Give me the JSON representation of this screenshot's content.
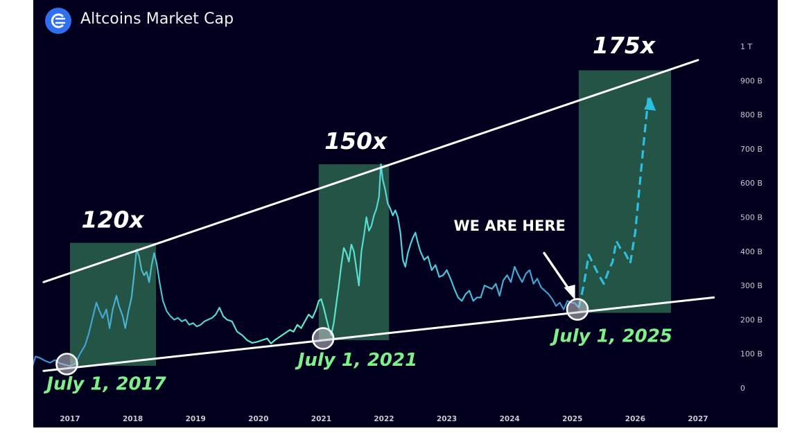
{
  "header": {
    "title": "Altcoins Market Cap",
    "logo_icon": "crypto-bubbles-logo-icon"
  },
  "colors": {
    "background": "#00001e",
    "line_start": "#3a8ed0",
    "line_end": "#62f0c8",
    "trend_line": "#ffffff",
    "highlight_box": "#2e6b52",
    "projection": "#2cc0e0",
    "date_label": "#7ef08a",
    "multiplier_label": "#ffffff",
    "axis_text": "#c8c9d2"
  },
  "chart_data": {
    "type": "line",
    "title": "Altcoins Market Cap",
    "xlabel": "",
    "ylabel": "",
    "ylim": [
      0,
      1000
    ],
    "y_unit": "B",
    "y_ticks": [
      {
        "v": 0,
        "label": "0"
      },
      {
        "v": 100,
        "label": "100 B"
      },
      {
        "v": 200,
        "label": "200 B"
      },
      {
        "v": 300,
        "label": "300 B"
      },
      {
        "v": 400,
        "label": "400 B"
      },
      {
        "v": 500,
        "label": "500 B"
      },
      {
        "v": 600,
        "label": "600 B"
      },
      {
        "v": 700,
        "label": "700 B"
      },
      {
        "v": 800,
        "label": "800 B"
      },
      {
        "v": 900,
        "label": "900 B"
      },
      {
        "v": 1000,
        "label": "1 T"
      }
    ],
    "x_range": [
      2016.4,
      2027.3
    ],
    "x_ticks": [
      {
        "v": 2017,
        "label": "2017"
      },
      {
        "v": 2018,
        "label": "2018"
      },
      {
        "v": 2019,
        "label": "2019"
      },
      {
        "v": 2020,
        "label": "2020"
      },
      {
        "v": 2021,
        "label": "2021"
      },
      {
        "v": 2022,
        "label": "2022"
      },
      {
        "v": 2023,
        "label": "2023"
      },
      {
        "v": 2024,
        "label": "2024"
      },
      {
        "v": 2025,
        "label": "2025"
      },
      {
        "v": 2026,
        "label": "2026"
      },
      {
        "v": 2027,
        "label": "2027"
      }
    ],
    "series": [
      {
        "style": "solid",
        "points": [
          [
            2016.4,
            62
          ],
          [
            2016.45,
            92
          ],
          [
            2016.52,
            88
          ],
          [
            2016.6,
            80
          ],
          [
            2016.68,
            74
          ],
          [
            2016.76,
            82
          ],
          [
            2016.84,
            72
          ],
          [
            2016.92,
            68
          ],
          [
            2017.0,
            64
          ],
          [
            2017.08,
            70
          ],
          [
            2017.16,
            100
          ],
          [
            2017.24,
            125
          ],
          [
            2017.3,
            160
          ],
          [
            2017.36,
            205
          ],
          [
            2017.42,
            250
          ],
          [
            2017.47,
            225
          ],
          [
            2017.52,
            205
          ],
          [
            2017.58,
            230
          ],
          [
            2017.63,
            175
          ],
          [
            2017.68,
            230
          ],
          [
            2017.74,
            270
          ],
          [
            2017.78,
            240
          ],
          [
            2017.84,
            210
          ],
          [
            2017.88,
            175
          ],
          [
            2017.93,
            225
          ],
          [
            2017.98,
            265
          ],
          [
            2018.02,
            330
          ],
          [
            2018.06,
            405
          ],
          [
            2018.1,
            385
          ],
          [
            2018.14,
            345
          ],
          [
            2018.18,
            330
          ],
          [
            2018.22,
            340
          ],
          [
            2018.26,
            310
          ],
          [
            2018.3,
            360
          ],
          [
            2018.34,
            395
          ],
          [
            2018.38,
            365
          ],
          [
            2018.43,
            305
          ],
          [
            2018.48,
            255
          ],
          [
            2018.54,
            225
          ],
          [
            2018.6,
            210
          ],
          [
            2018.66,
            200
          ],
          [
            2018.72,
            205
          ],
          [
            2018.78,
            195
          ],
          [
            2018.84,
            200
          ],
          [
            2018.9,
            185
          ],
          [
            2018.96,
            190
          ],
          [
            2019.02,
            180
          ],
          [
            2019.08,
            185
          ],
          [
            2019.14,
            195
          ],
          [
            2019.2,
            200
          ],
          [
            2019.26,
            205
          ],
          [
            2019.32,
            215
          ],
          [
            2019.38,
            235
          ],
          [
            2019.44,
            210
          ],
          [
            2019.5,
            200
          ],
          [
            2019.58,
            195
          ],
          [
            2019.66,
            165
          ],
          [
            2019.74,
            155
          ],
          [
            2019.82,
            140
          ],
          [
            2019.9,
            132
          ],
          [
            2019.98,
            135
          ],
          [
            2020.06,
            140
          ],
          [
            2020.14,
            145
          ],
          [
            2020.2,
            130
          ],
          [
            2020.26,
            140
          ],
          [
            2020.34,
            150
          ],
          [
            2020.42,
            160
          ],
          [
            2020.5,
            170
          ],
          [
            2020.56,
            165
          ],
          [
            2020.62,
            185
          ],
          [
            2020.68,
            175
          ],
          [
            2020.74,
            195
          ],
          [
            2020.8,
            215
          ],
          [
            2020.86,
            205
          ],
          [
            2020.92,
            230
          ],
          [
            2020.96,
            255
          ],
          [
            2021.0,
            260
          ],
          [
            2021.04,
            235
          ],
          [
            2021.08,
            205
          ],
          [
            2021.12,
            175
          ],
          [
            2021.16,
            155
          ],
          [
            2021.2,
            190
          ],
          [
            2021.24,
            245
          ],
          [
            2021.28,
            300
          ],
          [
            2021.32,
            360
          ],
          [
            2021.36,
            410
          ],
          [
            2021.4,
            395
          ],
          [
            2021.44,
            370
          ],
          [
            2021.48,
            420
          ],
          [
            2021.52,
            400
          ],
          [
            2021.56,
            350
          ],
          [
            2021.6,
            300
          ],
          [
            2021.64,
            400
          ],
          [
            2021.68,
            445
          ],
          [
            2021.72,
            500
          ],
          [
            2021.76,
            460
          ],
          [
            2021.8,
            475
          ],
          [
            2021.84,
            505
          ],
          [
            2021.88,
            525
          ],
          [
            2021.92,
            560
          ],
          [
            2021.95,
            655
          ],
          [
            2021.98,
            610
          ],
          [
            2022.02,
            580
          ],
          [
            2022.06,
            540
          ],
          [
            2022.1,
            525
          ],
          [
            2022.14,
            505
          ],
          [
            2022.18,
            520
          ],
          [
            2022.22,
            500
          ],
          [
            2022.26,
            455
          ],
          [
            2022.3,
            375
          ],
          [
            2022.34,
            355
          ],
          [
            2022.38,
            395
          ],
          [
            2022.42,
            420
          ],
          [
            2022.46,
            440
          ],
          [
            2022.5,
            455
          ],
          [
            2022.54,
            425
          ],
          [
            2022.58,
            400
          ],
          [
            2022.64,
            375
          ],
          [
            2022.7,
            385
          ],
          [
            2022.76,
            345
          ],
          [
            2022.82,
            360
          ],
          [
            2022.88,
            325
          ],
          [
            2022.94,
            330
          ],
          [
            2023.0,
            345
          ],
          [
            2023.06,
            320
          ],
          [
            2023.12,
            290
          ],
          [
            2023.18,
            265
          ],
          [
            2023.24,
            255
          ],
          [
            2023.3,
            275
          ],
          [
            2023.36,
            285
          ],
          [
            2023.42,
            255
          ],
          [
            2023.48,
            265
          ],
          [
            2023.54,
            265
          ],
          [
            2023.6,
            300
          ],
          [
            2023.66,
            295
          ],
          [
            2023.72,
            290
          ],
          [
            2023.78,
            305
          ],
          [
            2023.84,
            270
          ],
          [
            2023.9,
            315
          ],
          [
            2023.96,
            330
          ],
          [
            2024.02,
            310
          ],
          [
            2024.08,
            355
          ],
          [
            2024.14,
            330
          ],
          [
            2024.2,
            310
          ],
          [
            2024.26,
            335
          ],
          [
            2024.32,
            345
          ],
          [
            2024.38,
            305
          ],
          [
            2024.44,
            320
          ],
          [
            2024.5,
            295
          ],
          [
            2024.56,
            285
          ],
          [
            2024.62,
            275
          ],
          [
            2024.68,
            260
          ],
          [
            2024.74,
            240
          ],
          [
            2024.8,
            250
          ],
          [
            2024.86,
            230
          ],
          [
            2024.92,
            255
          ],
          [
            2024.98,
            250
          ],
          [
            2025.04,
            248
          ],
          [
            2025.1,
            235
          ]
        ]
      },
      {
        "style": "dashed",
        "points": [
          [
            2025.1,
            235
          ],
          [
            2025.18,
            300
          ],
          [
            2025.26,
            390
          ],
          [
            2025.34,
            360
          ],
          [
            2025.42,
            330
          ],
          [
            2025.5,
            305
          ],
          [
            2025.58,
            345
          ],
          [
            2025.64,
            370
          ],
          [
            2025.7,
            430
          ],
          [
            2025.76,
            410
          ],
          [
            2025.84,
            395
          ],
          [
            2025.92,
            365
          ],
          [
            2026.0,
            455
          ],
          [
            2026.08,
            610
          ],
          [
            2026.15,
            745
          ],
          [
            2026.21,
            850
          ]
        ]
      }
    ],
    "highlight_ranges": [
      {
        "x0": 2017.0,
        "x1": 2018.37,
        "y0": 65,
        "y1": 425
      },
      {
        "x0": 2020.96,
        "x1": 2022.08,
        "y0": 140,
        "y1": 655
      },
      {
        "x0": 2025.1,
        "x1": 2026.57,
        "y0": 220,
        "y1": 930
      }
    ],
    "trend_lines": [
      {
        "name": "upper",
        "x0": 2016.58,
        "y0": 310,
        "x1": 2027.0,
        "y1": 960
      },
      {
        "name": "lower",
        "x0": 2016.58,
        "y0": 50,
        "x1": 2027.25,
        "y1": 265
      }
    ],
    "annotations": [
      {
        "kind": "multiplier",
        "text": "120x",
        "x": 2017.68,
        "y": 470
      },
      {
        "kind": "multiplier",
        "text": "150x",
        "x": 2021.55,
        "y": 700
      },
      {
        "kind": "multiplier",
        "text": "175x",
        "x": 2025.82,
        "y": 980
      },
      {
        "kind": "date",
        "text": "July 1, 2017",
        "x": 2017.58,
        "y": -5
      },
      {
        "kind": "date",
        "text": "July 1, 2021",
        "x": 2021.58,
        "y": 65
      },
      {
        "kind": "date",
        "text": "July 1, 2025",
        "x": 2025.64,
        "y": 135
      },
      {
        "kind": "callout",
        "text": "WE ARE HERE",
        "x": 2024.0,
        "y": 460
      }
    ],
    "markers": [
      {
        "x": 2016.95,
        "y": 70
      },
      {
        "x": 2021.03,
        "y": 145
      },
      {
        "x": 2025.08,
        "y": 230
      }
    ],
    "pointer_arrow": {
      "x0": 2024.55,
      "y0": 395,
      "x1": 2025.02,
      "y1": 262
    },
    "projection_arrow_tip": {
      "x": 2026.23,
      "y": 820
    }
  }
}
